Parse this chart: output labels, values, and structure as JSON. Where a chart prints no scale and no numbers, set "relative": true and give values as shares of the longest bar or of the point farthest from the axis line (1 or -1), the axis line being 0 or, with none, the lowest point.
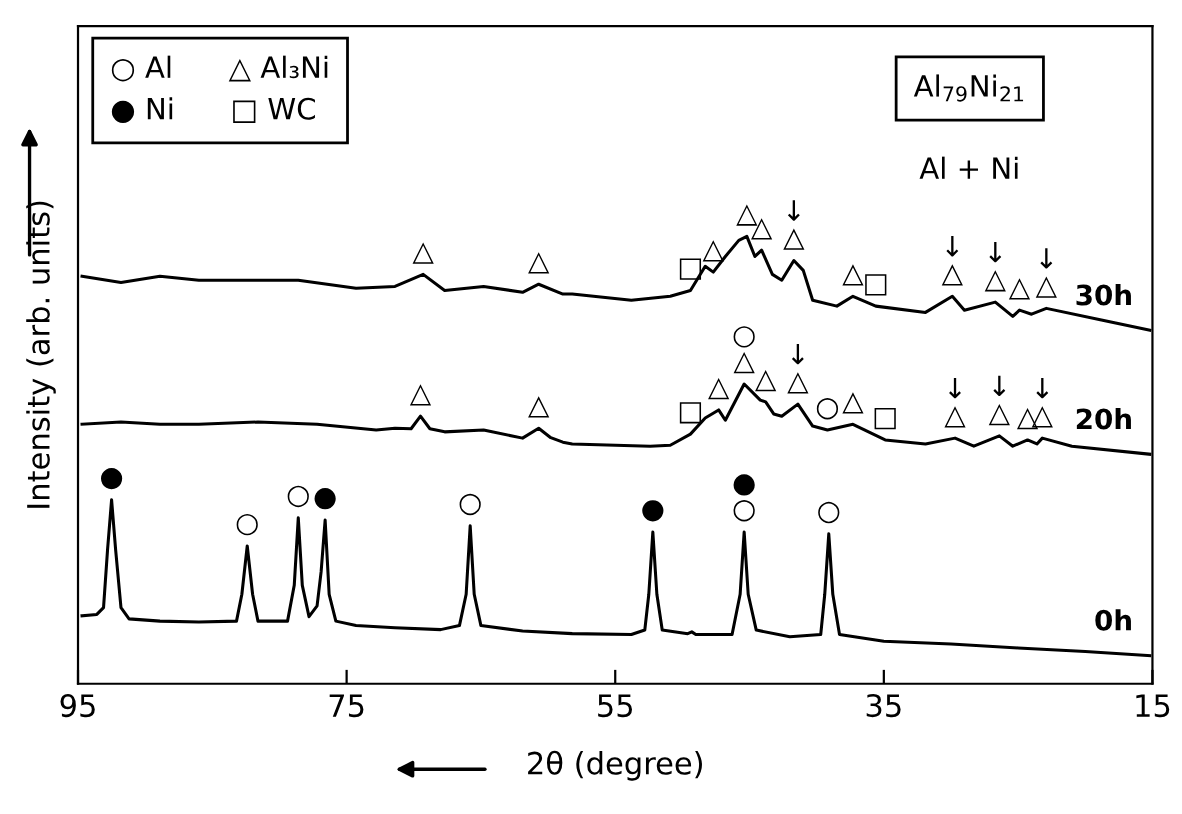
{
  "chart_data": {
    "type": "line",
    "relative": true,
    "xlabel": "2θ (degree)",
    "ylabel": "Intensity (arb. units)",
    "xlim": [
      95,
      15
    ],
    "xticks": [
      95,
      75,
      55,
      35,
      15
    ],
    "grid": false,
    "tick_labels": "x",
    "annotations": [
      "○ Al      △ Al₃Ni\n● Ni      □ WC",
      "Al$_{79}$Ni$_{21}$",
      "Al + Ni",
      {
        "text": "△",
        "x": 69.3,
        "y": 0.915
      },
      {
        "text": "△",
        "x": 60.7,
        "y": 0.893
      },
      {
        "text": "□",
        "x": 49.4,
        "y": 0.879
      },
      {
        "text": "△",
        "x": 47.7,
        "y": 0.92
      },
      {
        "text": "△",
        "x": 45.2,
        "y": 1.0
      },
      {
        "text": "△",
        "x": 44.1,
        "y": 0.969
      },
      {
        "text": "↓\n△",
        "x": 41.7,
        "y": 0.946
      },
      {
        "text": "△",
        "x": 37.3,
        "y": 0.866
      },
      {
        "text": "□",
        "x": 35.6,
        "y": 0.844
      },
      {
        "text": "↓\n△",
        "x": 29.9,
        "y": 0.866
      },
      {
        "text": "↓\n△",
        "x": 26.7,
        "y": 0.853
      },
      {
        "text": "△",
        "x": 24.9,
        "y": 0.835
      },
      {
        "text": "↓\n△",
        "x": 22.9,
        "y": 0.839
      },
      {
        "text": "△",
        "x": 69.5,
        "y": 0.598
      },
      {
        "text": "△",
        "x": 60.7,
        "y": 0.571
      },
      {
        "text": "□",
        "x": 49.4,
        "y": 0.558
      },
      {
        "text": "△",
        "x": 47.3,
        "y": 0.612
      },
      {
        "text": "○\n△",
        "x": 45.4,
        "y": 0.67
      },
      {
        "text": "△",
        "x": 43.8,
        "y": 0.63
      },
      {
        "text": "↓\n△",
        "x": 41.4,
        "y": 0.625
      },
      {
        "text": "○",
        "x": 39.2,
        "y": 0.567
      },
      {
        "text": "△",
        "x": 37.3,
        "y": 0.58
      },
      {
        "text": "□",
        "x": 34.9,
        "y": 0.545
      },
      {
        "text": "↓\n△",
        "x": 29.7,
        "y": 0.549
      },
      {
        "text": "↓\n△",
        "x": 26.4,
        "y": 0.554
      },
      {
        "text": "△",
        "x": 24.3,
        "y": 0.545
      },
      {
        "text": "↓\n△",
        "x": 23.2,
        "y": 0.549
      },
      {
        "text": "●",
        "x": 92.5,
        "y": 0.411
      },
      {
        "text": "○",
        "x": 82.4,
        "y": 0.308
      },
      {
        "text": "○",
        "x": 78.6,
        "y": 0.371
      },
      {
        "text": "●",
        "x": 76.6,
        "y": 0.366
      },
      {
        "text": "○",
        "x": 65.8,
        "y": 0.353
      },
      {
        "text": "●",
        "x": 52.2,
        "y": 0.339
      },
      {
        "text": "●\n○",
        "x": 45.4,
        "y": 0.339
      },
      {
        "text": "○",
        "x": 39.1,
        "y": 0.335
      }
    ],
    "series": [
      {
        "name": "30h",
        "color": "#000000",
        "x": [
          94.7,
          91.8,
          88.9,
          86.0,
          78.6,
          74.3,
          71.4,
          69.3,
          67.7,
          64.8,
          61.9,
          60.7,
          58.9,
          58.2,
          53.8,
          50.9,
          49.4,
          48.3,
          47.7,
          46.8,
          45.8,
          45.2,
          44.6,
          44.1,
          43.3,
          42.6,
          41.7,
          41.0,
          40.3,
          38.5,
          37.3,
          35.6,
          31.9,
          29.9,
          29.0,
          26.7,
          25.4,
          24.9,
          24.0,
          22.9,
          18.8,
          15.2
        ],
        "values": [
          0.911,
          0.897,
          0.911,
          0.902,
          0.902,
          0.884,
          0.888,
          0.915,
          0.879,
          0.888,
          0.875,
          0.893,
          0.871,
          0.871,
          0.857,
          0.866,
          0.879,
          0.933,
          0.92,
          0.955,
          0.991,
          1.0,
          0.955,
          0.969,
          0.915,
          0.902,
          0.946,
          0.924,
          0.857,
          0.844,
          0.866,
          0.844,
          0.83,
          0.866,
          0.835,
          0.853,
          0.821,
          0.835,
          0.826,
          0.839,
          0.813,
          0.79
        ]
      },
      {
        "name": "20h",
        "color": "#000000",
        "x": [
          94.7,
          91.8,
          88.9,
          86.0,
          81.6,
          77.2,
          72.8,
          71.4,
          70.2,
          69.5,
          68.8,
          67.7,
          64.8,
          61.9,
          60.7,
          59.8,
          58.9,
          58.2,
          52.4,
          50.9,
          49.4,
          48.3,
          47.3,
          46.8,
          45.4,
          44.2,
          43.8,
          43.2,
          42.6,
          41.4,
          40.3,
          39.2,
          37.3,
          34.9,
          31.9,
          29.7,
          28.3,
          26.4,
          25.4,
          24.3,
          23.6,
          23.2,
          21.0,
          15.2
        ],
        "values": [
          0.58,
          0.585,
          0.58,
          0.58,
          0.585,
          0.58,
          0.567,
          0.571,
          0.57,
          0.598,
          0.57,
          0.563,
          0.567,
          0.549,
          0.571,
          0.55,
          0.54,
          0.536,
          0.531,
          0.533,
          0.558,
          0.594,
          0.612,
          0.589,
          0.67,
          0.634,
          0.63,
          0.603,
          0.598,
          0.625,
          0.576,
          0.567,
          0.58,
          0.545,
          0.536,
          0.549,
          0.531,
          0.554,
          0.531,
          0.545,
          0.536,
          0.549,
          0.531,
          0.513
        ]
      },
      {
        "name": "0h",
        "color": "#000000",
        "x": [
          94.7,
          93.6,
          93.1,
          92.8,
          92.5,
          92.2,
          91.8,
          91.2,
          88.9,
          86.0,
          83.2,
          82.8,
          82.4,
          82.0,
          81.6,
          79.4,
          78.9,
          78.6,
          78.3,
          77.8,
          77.2,
          76.9,
          76.6,
          76.3,
          75.8,
          74.3,
          71.4,
          68.0,
          66.6,
          66.1,
          65.8,
          65.5,
          65.0,
          61.9,
          58.2,
          53.8,
          52.8,
          52.5,
          52.2,
          51.9,
          51.5,
          49.6,
          49.3,
          49.0,
          46.3,
          45.7,
          45.4,
          45.1,
          44.5,
          42.0,
          39.7,
          39.4,
          39.1,
          38.8,
          38.3,
          35.0,
          30.0,
          25.0,
          20.0,
          15.2
        ],
        "values": [
          0.152,
          0.155,
          0.17,
          0.3,
          0.411,
          0.3,
          0.17,
          0.145,
          0.14,
          0.138,
          0.14,
          0.2,
          0.308,
          0.2,
          0.14,
          0.14,
          0.22,
          0.371,
          0.22,
          0.15,
          0.174,
          0.25,
          0.366,
          0.2,
          0.14,
          0.13,
          0.125,
          0.121,
          0.13,
          0.2,
          0.353,
          0.2,
          0.13,
          0.118,
          0.112,
          0.11,
          0.12,
          0.2,
          0.339,
          0.2,
          0.12,
          0.112,
          0.116,
          0.11,
          0.11,
          0.2,
          0.339,
          0.2,
          0.12,
          0.105,
          0.11,
          0.2,
          0.335,
          0.2,
          0.11,
          0.095,
          0.089,
          0.08,
          0.072,
          0.063
        ]
      }
    ]
  }
}
